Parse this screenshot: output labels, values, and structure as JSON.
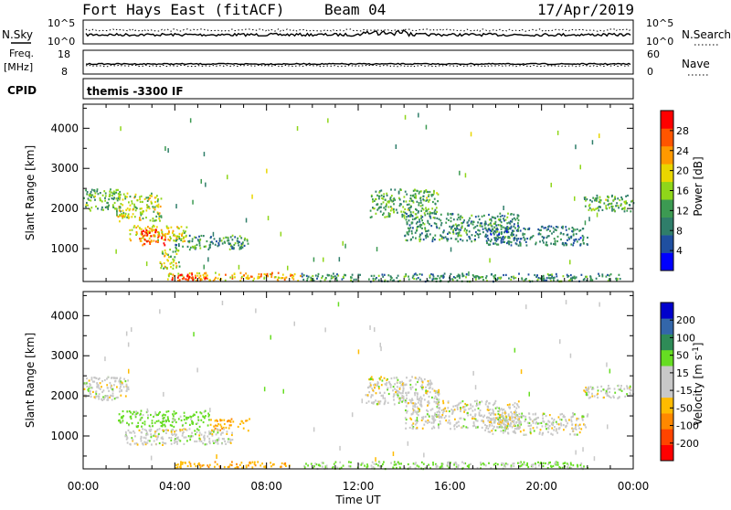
{
  "header": {
    "station": "Fort Hays East (fitACF)",
    "beam": "Beam 04",
    "date": "17/Apr/2019"
  },
  "top_panels": {
    "noise": {
      "left_label": "N.Sky",
      "right_label": "N.Search",
      "left_ticks": [
        "10^5",
        "10^0"
      ],
      "right_ticks": [
        "10^5",
        "10^0"
      ]
    },
    "freq": {
      "left_label_top": "Freq.",
      "left_label_unit": "[MHz]",
      "right_label": "Nave",
      "left_ticks": [
        "18",
        "8"
      ],
      "right_ticks": [
        "60",
        "0"
      ]
    },
    "cpid": {
      "label": "CPID",
      "value": "themis -3300 IF"
    }
  },
  "axes": {
    "x_label": "Time UT",
    "x_ticks": [
      "00:00",
      "04:00",
      "08:00",
      "12:00",
      "16:00",
      "20:00",
      "00:00"
    ],
    "y_label": "Slant Range [km]",
    "y_ticks": [
      "1000",
      "2000",
      "3000",
      "4000"
    ]
  },
  "colors": {
    "power_scale": [
      "#0000ff",
      "#1f4fa0",
      "#2f7e6a",
      "#3c9a52",
      "#8fd61a",
      "#e9d600",
      "#ff9900",
      "#ff5500",
      "#ff0000"
    ],
    "velocity_scale": [
      "#ff0000",
      "#ff4400",
      "#ff8800",
      "#ffbb00",
      "#c8c8c8",
      "#c8c8c8",
      "#66dd22",
      "#2e8b57",
      "#3366aa",
      "#0000cc"
    ]
  },
  "chart_data": [
    {
      "type": "heatmap",
      "title": "Power",
      "xlabel": "Time UT",
      "ylabel": "Slant Range [km]",
      "xlim": [
        0,
        24
      ],
      "ylim": [
        180,
        4600
      ],
      "colorbar": {
        "label": "Power [dB]",
        "ticks": [
          "4",
          "8",
          "12",
          "16",
          "20",
          "24",
          "28"
        ],
        "range": [
          0,
          30
        ]
      },
      "regions": [
        {
          "t": [
            0.0,
            1.6
          ],
          "r": [
            1950,
            2500
          ],
          "value": 12
        },
        {
          "t": [
            1.4,
            3.4
          ],
          "r": [
            1700,
            2400
          ],
          "value": 16
        },
        {
          "t": [
            2.0,
            4.5
          ],
          "r": [
            1200,
            1600
          ],
          "value": 18
        },
        {
          "t": [
            2.4,
            3.6
          ],
          "r": [
            1100,
            1500
          ],
          "value": 26
        },
        {
          "t": [
            4.0,
            7.2
          ],
          "r": [
            1000,
            1350
          ],
          "value": 10
        },
        {
          "t": [
            3.3,
            4.2
          ],
          "r": [
            500,
            1000
          ],
          "value": 16
        },
        {
          "t": [
            3.6,
            9.5
          ],
          "r": [
            220,
            420
          ],
          "value": 20
        },
        {
          "t": [
            3.8,
            5.4
          ],
          "r": [
            240,
            380
          ],
          "value": 28
        },
        {
          "t": [
            9.5,
            23.5
          ],
          "r": [
            200,
            400
          ],
          "value": 10
        },
        {
          "t": [
            12.5,
            15.5
          ],
          "r": [
            1800,
            2500
          ],
          "value": 12
        },
        {
          "t": [
            14.0,
            19.0
          ],
          "r": [
            1200,
            1900
          ],
          "value": 10
        },
        {
          "t": [
            17.5,
            22.0
          ],
          "r": [
            1100,
            1600
          ],
          "value": 8
        },
        {
          "t": [
            21.8,
            24.0
          ],
          "r": [
            1950,
            2350
          ],
          "value": 12
        }
      ]
    },
    {
      "type": "heatmap",
      "title": "Velocity",
      "xlabel": "Time UT",
      "ylabel": "Slant Range [km]",
      "xlim": [
        0,
        24
      ],
      "ylim": [
        180,
        4600
      ],
      "colorbar": {
        "label": "Velocity [m s^-1]",
        "ticks": [
          "200",
          "100",
          "50",
          "15",
          "-15",
          "-50",
          "-100",
          "-200"
        ],
        "range": [
          -250,
          250
        ]
      },
      "regions": [
        {
          "t": [
            0.0,
            2.0
          ],
          "r": [
            1900,
            2500
          ],
          "value": 0
        },
        {
          "t": [
            1.5,
            5.5
          ],
          "r": [
            1250,
            1650
          ],
          "value": 30
        },
        {
          "t": [
            5.5,
            7.3
          ],
          "r": [
            1150,
            1450
          ],
          "value": -40
        },
        {
          "t": [
            1.8,
            6.5
          ],
          "r": [
            800,
            1200
          ],
          "value": 0
        },
        {
          "t": [
            4.0,
            9.0
          ],
          "r": [
            220,
            380
          ],
          "value": -40
        },
        {
          "t": [
            9.5,
            22.0
          ],
          "r": [
            200,
            380
          ],
          "value": 20
        },
        {
          "t": [
            12.3,
            15.5
          ],
          "r": [
            1800,
            2500
          ],
          "value": 0
        },
        {
          "t": [
            14.0,
            19.0
          ],
          "r": [
            1200,
            1900
          ],
          "value": 0
        },
        {
          "t": [
            17.5,
            22.0
          ],
          "r": [
            1050,
            1600
          ],
          "value": 0
        },
        {
          "t": [
            21.8,
            24.0
          ],
          "r": [
            1950,
            2300
          ],
          "value": 0
        }
      ]
    }
  ]
}
